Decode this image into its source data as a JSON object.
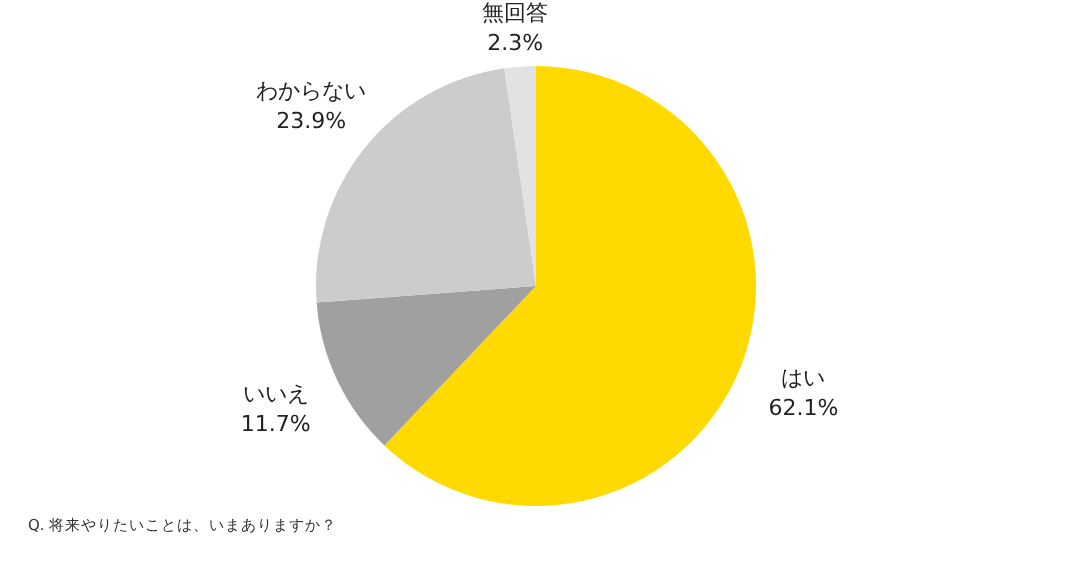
{
  "chart_data": {
    "type": "pie",
    "categories": [
      "はい",
      "いいえ",
      "わからない",
      "無回答"
    ],
    "values": [
      62.1,
      11.7,
      23.9,
      2.3
    ],
    "colors": [
      "#ffd900",
      "#a0a0a0",
      "#cccccc",
      "#e2e2e2"
    ],
    "value_labels": [
      "62.1%",
      "11.7%",
      "23.9%",
      "2.3%"
    ],
    "annotations": [
      "Q. 将来やりたいことは、いまありますか？"
    ]
  }
}
